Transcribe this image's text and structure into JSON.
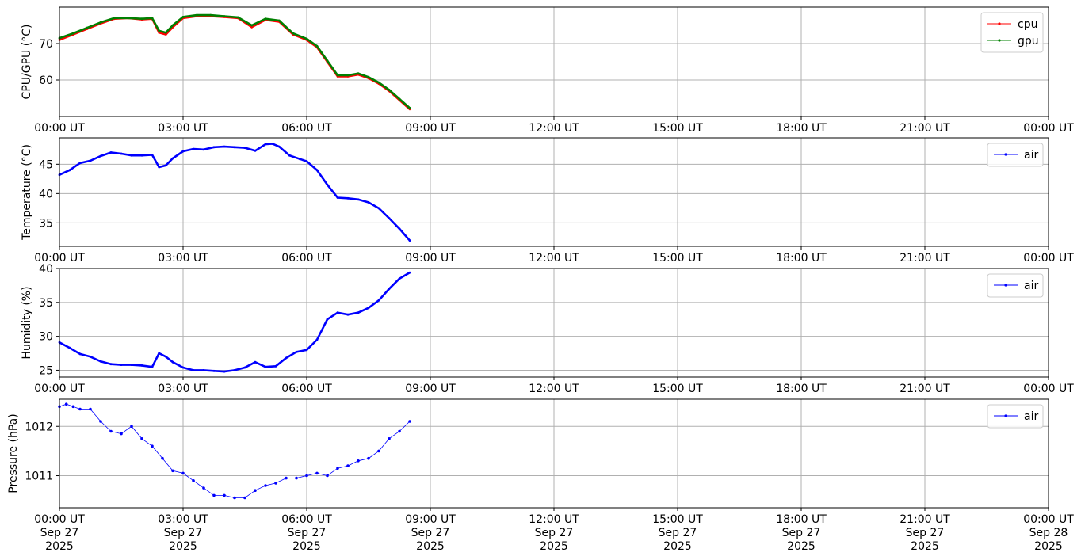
{
  "colors": {
    "cpu": "#ff0000",
    "gpu": "#008000",
    "air": "#0000ff",
    "grid": "#b0b0b0"
  },
  "x_ticks": [
    "00:00 UT",
    "03:00 UT",
    "06:00 UT",
    "09:00 UT",
    "12:00 UT",
    "15:00 UT",
    "18:00 UT",
    "21:00 UT",
    "00:00 UT"
  ],
  "x_dates_line2": [
    "Sep 27",
    "Sep 27",
    "Sep 27",
    "Sep 27",
    "Sep 27",
    "Sep 27",
    "Sep 27",
    "Sep 27",
    "Sep 28"
  ],
  "x_dates_line3": [
    "2025",
    "2025",
    "2025",
    "2025",
    "2025",
    "2025",
    "2025",
    "2025",
    "2025"
  ],
  "chart_data": [
    {
      "type": "line",
      "ylabel": "CPU/GPU (°C)",
      "xlim": [
        "2025-09-27 00:00",
        "2025-09-28 00:00"
      ],
      "ylim": [
        50,
        80
      ],
      "yticks": [
        60,
        70
      ],
      "ytick_labels": [
        "60",
        "70"
      ],
      "grid": true,
      "legend": "top-right",
      "series": [
        {
          "name": "cpu",
          "color": "#ff0000",
          "points": [
            [
              "00:00",
              71
            ],
            [
              "00:20",
              72.5
            ],
            [
              "00:40",
              74
            ],
            [
              "01:00",
              75.5
            ],
            [
              "01:20",
              76.8
            ],
            [
              "01:40",
              77
            ],
            [
              "02:00",
              76.6
            ],
            [
              "02:15",
              76.8
            ],
            [
              "02:25",
              73
            ],
            [
              "02:35",
              72.5
            ],
            [
              "02:45",
              74.5
            ],
            [
              "03:00",
              77
            ],
            [
              "03:20",
              77.5
            ],
            [
              "03:40",
              77.5
            ],
            [
              "04:00",
              77.3
            ],
            [
              "04:20",
              77
            ],
            [
              "04:40",
              74.5
            ],
            [
              "05:00",
              76.5
            ],
            [
              "05:20",
              76
            ],
            [
              "05:40",
              72.5
            ],
            [
              "06:00",
              71
            ],
            [
              "06:15",
              69
            ],
            [
              "06:30",
              65
            ],
            [
              "06:45",
              61
            ],
            [
              "07:00",
              61
            ],
            [
              "07:15",
              61.5
            ],
            [
              "07:30",
              60.5
            ],
            [
              "07:45",
              59
            ],
            [
              "08:00",
              57
            ],
            [
              "08:15",
              54.5
            ],
            [
              "08:30",
              52
            ]
          ]
        },
        {
          "name": "gpu",
          "color": "#008000",
          "points": [
            [
              "00:00",
              71.5
            ],
            [
              "00:20",
              72.8
            ],
            [
              "00:40",
              74.3
            ],
            [
              "01:00",
              75.8
            ],
            [
              "01:20",
              77
            ],
            [
              "01:40",
              77
            ],
            [
              "02:00",
              76.8
            ],
            [
              "02:15",
              77
            ],
            [
              "02:25",
              73.5
            ],
            [
              "02:35",
              73
            ],
            [
              "02:45",
              75
            ],
            [
              "03:00",
              77.3
            ],
            [
              "03:20",
              77.8
            ],
            [
              "03:40",
              77.8
            ],
            [
              "04:00",
              77.5
            ],
            [
              "04:20",
              77.2
            ],
            [
              "04:40",
              75
            ],
            [
              "05:00",
              76.8
            ],
            [
              "05:20",
              76.3
            ],
            [
              "05:40",
              72.8
            ],
            [
              "06:00",
              71.3
            ],
            [
              "06:15",
              69.3
            ],
            [
              "06:30",
              65.3
            ],
            [
              "06:45",
              61.3
            ],
            [
              "07:00",
              61.3
            ],
            [
              "07:15",
              61.8
            ],
            [
              "07:30",
              60.8
            ],
            [
              "07:45",
              59.3
            ],
            [
              "08:00",
              57.3
            ],
            [
              "08:15",
              54.8
            ],
            [
              "08:30",
              52.3
            ]
          ]
        }
      ]
    },
    {
      "type": "line",
      "ylabel": "Temperature (°C)",
      "xlim": [
        "2025-09-27 00:00",
        "2025-09-28 00:00"
      ],
      "ylim": [
        31,
        49.5
      ],
      "yticks": [
        35,
        40,
        45
      ],
      "ytick_labels": [
        "35",
        "40",
        "45"
      ],
      "grid": true,
      "legend": "top-right",
      "series": [
        {
          "name": "air",
          "color": "#0000ff",
          "points": [
            [
              "00:00",
              43.2
            ],
            [
              "00:15",
              44
            ],
            [
              "00:30",
              45.2
            ],
            [
              "00:45",
              45.6
            ],
            [
              "01:00",
              46.4
            ],
            [
              "01:15",
              47
            ],
            [
              "01:30",
              46.8
            ],
            [
              "01:45",
              46.5
            ],
            [
              "02:00",
              46.5
            ],
            [
              "02:15",
              46.6
            ],
            [
              "02:25",
              44.5
            ],
            [
              "02:35",
              44.8
            ],
            [
              "02:45",
              46
            ],
            [
              "03:00",
              47.2
            ],
            [
              "03:15",
              47.6
            ],
            [
              "03:30",
              47.5
            ],
            [
              "03:45",
              47.9
            ],
            [
              "04:00",
              48
            ],
            [
              "04:15",
              47.9
            ],
            [
              "04:30",
              47.8
            ],
            [
              "04:45",
              47.3
            ],
            [
              "05:00",
              48.4
            ],
            [
              "05:10",
              48.5
            ],
            [
              "05:20",
              48
            ],
            [
              "05:35",
              46.5
            ],
            [
              "05:50",
              45.9
            ],
            [
              "06:00",
              45.5
            ],
            [
              "06:15",
              44
            ],
            [
              "06:30",
              41.5
            ],
            [
              "06:45",
              39.3
            ],
            [
              "07:00",
              39.2
            ],
            [
              "07:15",
              39
            ],
            [
              "07:30",
              38.5
            ],
            [
              "07:45",
              37.5
            ],
            [
              "08:00",
              35.8
            ],
            [
              "08:15",
              34
            ],
            [
              "08:30",
              32
            ]
          ]
        }
      ]
    },
    {
      "type": "line",
      "ylabel": "Humidity (%)",
      "xlim": [
        "2025-09-27 00:00",
        "2025-09-28 00:00"
      ],
      "ylim": [
        24,
        40
      ],
      "yticks": [
        25,
        30,
        35,
        40
      ],
      "ytick_labels": [
        "25",
        "30",
        "35",
        "40"
      ],
      "grid": true,
      "legend": "top-right",
      "series": [
        {
          "name": "air",
          "color": "#0000ff",
          "points": [
            [
              "00:00",
              29.1
            ],
            [
              "00:15",
              28.3
            ],
            [
              "00:30",
              27.4
            ],
            [
              "00:45",
              27
            ],
            [
              "01:00",
              26.3
            ],
            [
              "01:15",
              25.9
            ],
            [
              "01:30",
              25.8
            ],
            [
              "01:45",
              25.8
            ],
            [
              "02:00",
              25.7
            ],
            [
              "02:15",
              25.5
            ],
            [
              "02:25",
              27.5
            ],
            [
              "02:35",
              27
            ],
            [
              "02:45",
              26.2
            ],
            [
              "03:00",
              25.4
            ],
            [
              "03:15",
              25
            ],
            [
              "03:30",
              25
            ],
            [
              "03:45",
              24.9
            ],
            [
              "04:00",
              24.8
            ],
            [
              "04:15",
              25
            ],
            [
              "04:30",
              25.4
            ],
            [
              "04:45",
              26.2
            ],
            [
              "05:00",
              25.5
            ],
            [
              "05:15",
              25.6
            ],
            [
              "05:30",
              26.8
            ],
            [
              "05:45",
              27.7
            ],
            [
              "06:00",
              28
            ],
            [
              "06:15",
              29.5
            ],
            [
              "06:30",
              32.5
            ],
            [
              "06:45",
              33.5
            ],
            [
              "07:00",
              33.2
            ],
            [
              "07:15",
              33.5
            ],
            [
              "07:30",
              34.2
            ],
            [
              "07:45",
              35.3
            ],
            [
              "08:00",
              37
            ],
            [
              "08:15",
              38.5
            ],
            [
              "08:30",
              39.4
            ]
          ]
        }
      ]
    },
    {
      "type": "scatter",
      "ylabel": "Pressure (hPa)",
      "xlim": [
        "2025-09-27 00:00",
        "2025-09-28 00:00"
      ],
      "ylim": [
        1010.35,
        1012.55
      ],
      "yticks": [
        1011,
        1012
      ],
      "ytick_labels": [
        "1011",
        "1012"
      ],
      "grid": true,
      "legend": "top-right",
      "series": [
        {
          "name": "air",
          "color": "#0000ff",
          "points": [
            [
              "00:00",
              1012.4
            ],
            [
              "00:10",
              1012.45
            ],
            [
              "00:20",
              1012.4
            ],
            [
              "00:30",
              1012.35
            ],
            [
              "00:45",
              1012.35
            ],
            [
              "01:00",
              1012.1
            ],
            [
              "01:15",
              1011.9
            ],
            [
              "01:30",
              1011.85
            ],
            [
              "01:45",
              1012
            ],
            [
              "02:00",
              1011.75
            ],
            [
              "02:15",
              1011.6
            ],
            [
              "02:30",
              1011.35
            ],
            [
              "02:45",
              1011.1
            ],
            [
              "03:00",
              1011.05
            ],
            [
              "03:15",
              1010.9
            ],
            [
              "03:30",
              1010.75
            ],
            [
              "03:45",
              1010.6
            ],
            [
              "04:00",
              1010.6
            ],
            [
              "04:15",
              1010.55
            ],
            [
              "04:30",
              1010.55
            ],
            [
              "04:45",
              1010.7
            ],
            [
              "05:00",
              1010.8
            ],
            [
              "05:15",
              1010.85
            ],
            [
              "05:30",
              1010.95
            ],
            [
              "05:45",
              1010.95
            ],
            [
              "06:00",
              1011
            ],
            [
              "06:15",
              1011.05
            ],
            [
              "06:30",
              1011
            ],
            [
              "06:45",
              1011.15
            ],
            [
              "07:00",
              1011.2
            ],
            [
              "07:15",
              1011.3
            ],
            [
              "07:30",
              1011.35
            ],
            [
              "07:45",
              1011.5
            ],
            [
              "08:00",
              1011.75
            ],
            [
              "08:15",
              1011.9
            ],
            [
              "08:30",
              1012.1
            ]
          ]
        }
      ]
    }
  ]
}
